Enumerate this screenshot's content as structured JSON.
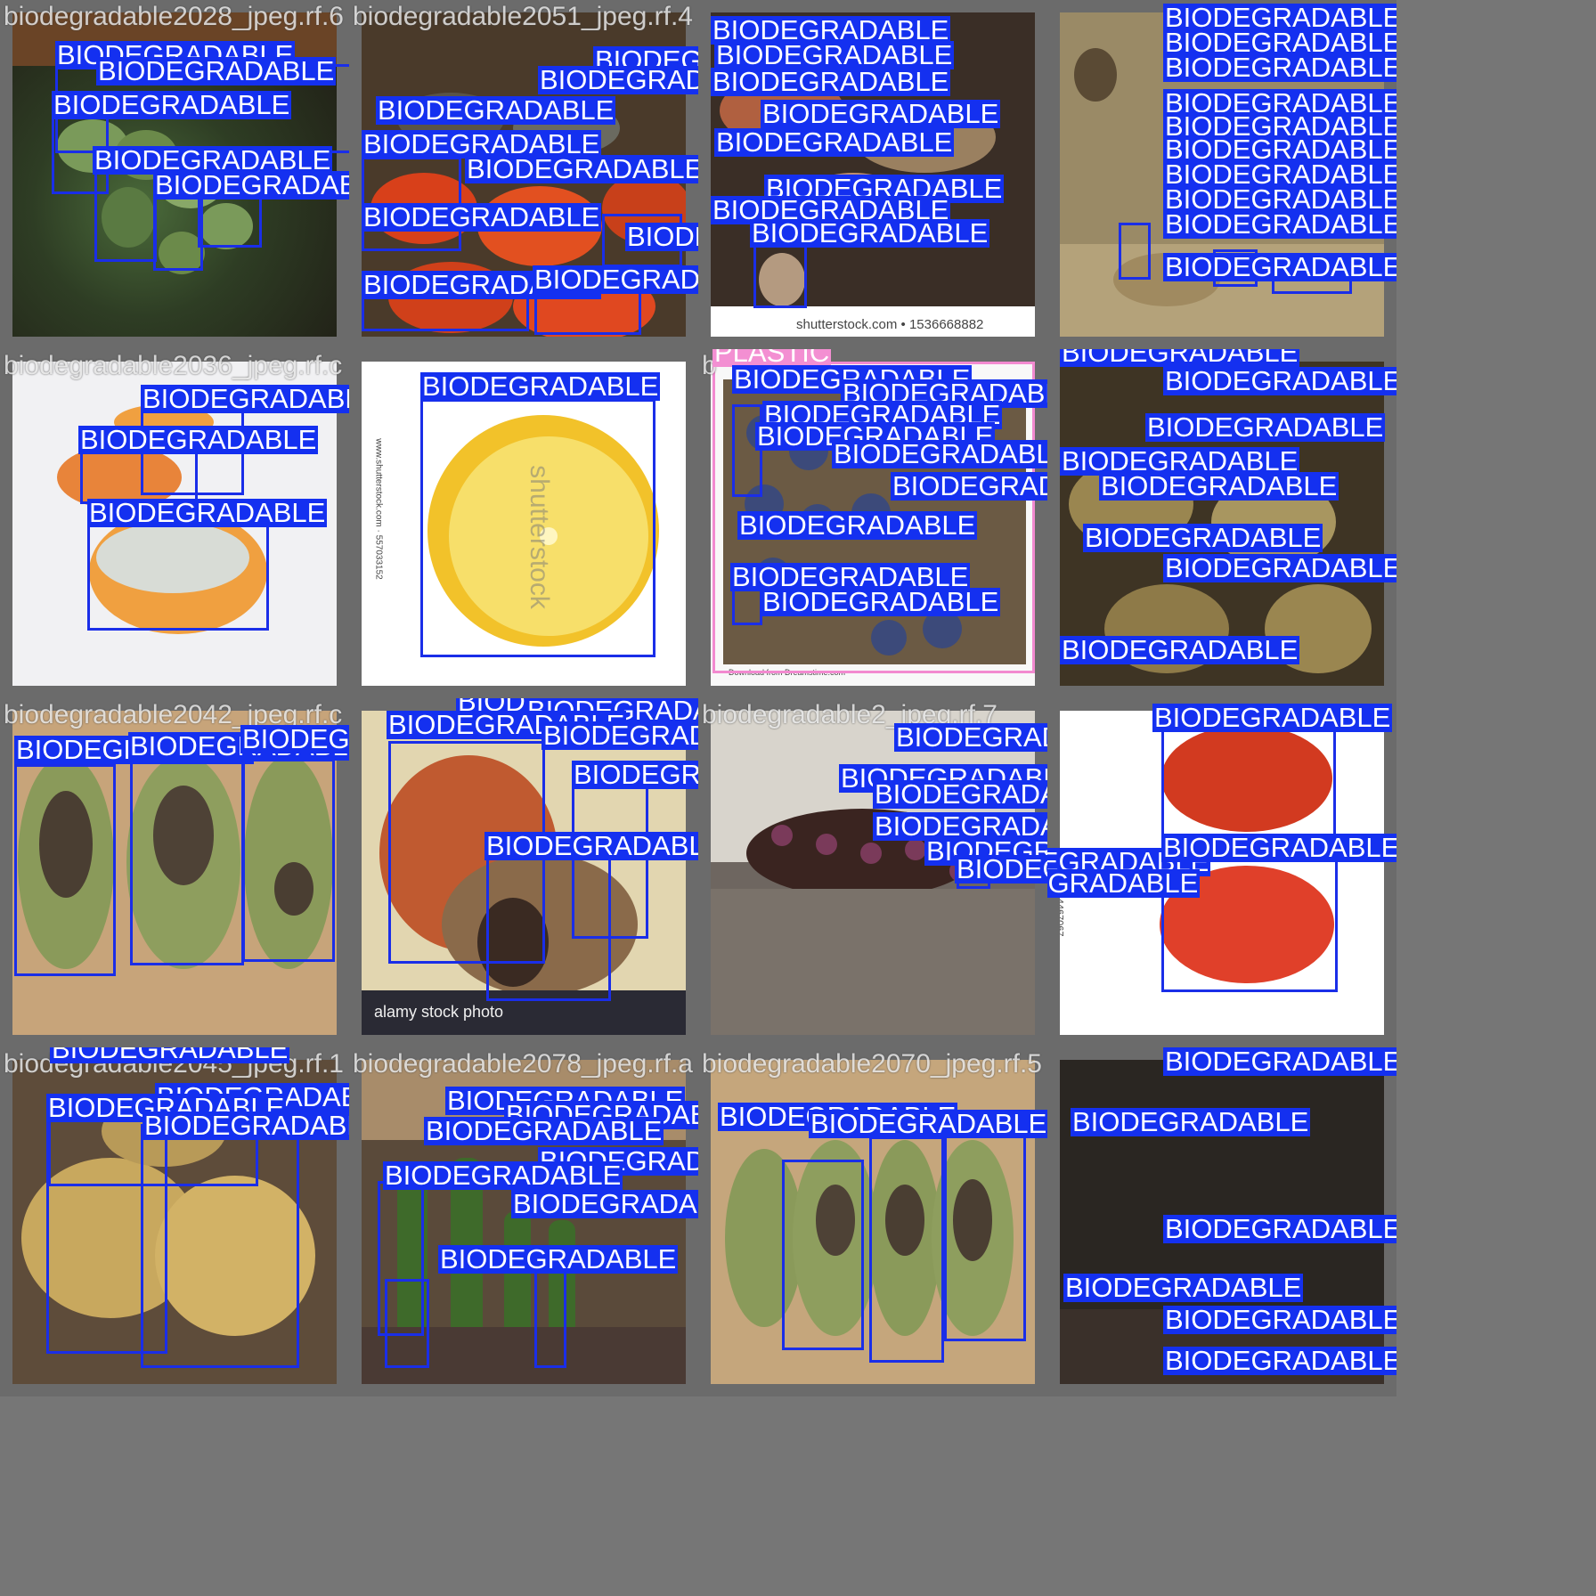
{
  "labels": {
    "biodegradable": "BIODEGRADABLE",
    "plastic": "PLASTIC"
  },
  "colors": {
    "biodegradable_box": "#1a2ee8",
    "biodegradable_label_bg": "#1430f0",
    "plastic_box": "#f28ad0",
    "plastic_label_bg": "#f38fd2",
    "label_text": "#ffffff",
    "tile_border": "#767676"
  },
  "tiles": [
    {
      "title": "biodegradable2028_jpeg.rf.6"
    },
    {
      "title": "biodegradable2051_jpeg.rf.4"
    },
    {
      "title": ""
    },
    {
      "title": ""
    },
    {
      "title": "biodegradable2036_jpeg.rf.c"
    },
    {
      "title": ""
    },
    {
      "title": "b"
    },
    {
      "title": ""
    },
    {
      "title": "biodegradable2042_jpeg.rf.c"
    },
    {
      "title": ""
    },
    {
      "title": "biodegradable2_jpeg.rf.7"
    },
    {
      "title": ""
    },
    {
      "title": "biodegradable2045_jpeg.rf.1"
    },
    {
      "title": "biodegradable2078_jpeg.rf.a"
    },
    {
      "title": "biodegradable2070_jpeg.rf.5"
    },
    {
      "title": ""
    }
  ],
  "watermarks": {
    "shutterstock_id": "shutterstock.com • 1536668882",
    "shutterstock": "shutterstock",
    "shutterstock_side": "www.shutterstock.com · 557033152",
    "alamy": "alamy stock photo",
    "dreamstime": "Download from Dreamstime.com",
    "side_id": "544467067"
  }
}
